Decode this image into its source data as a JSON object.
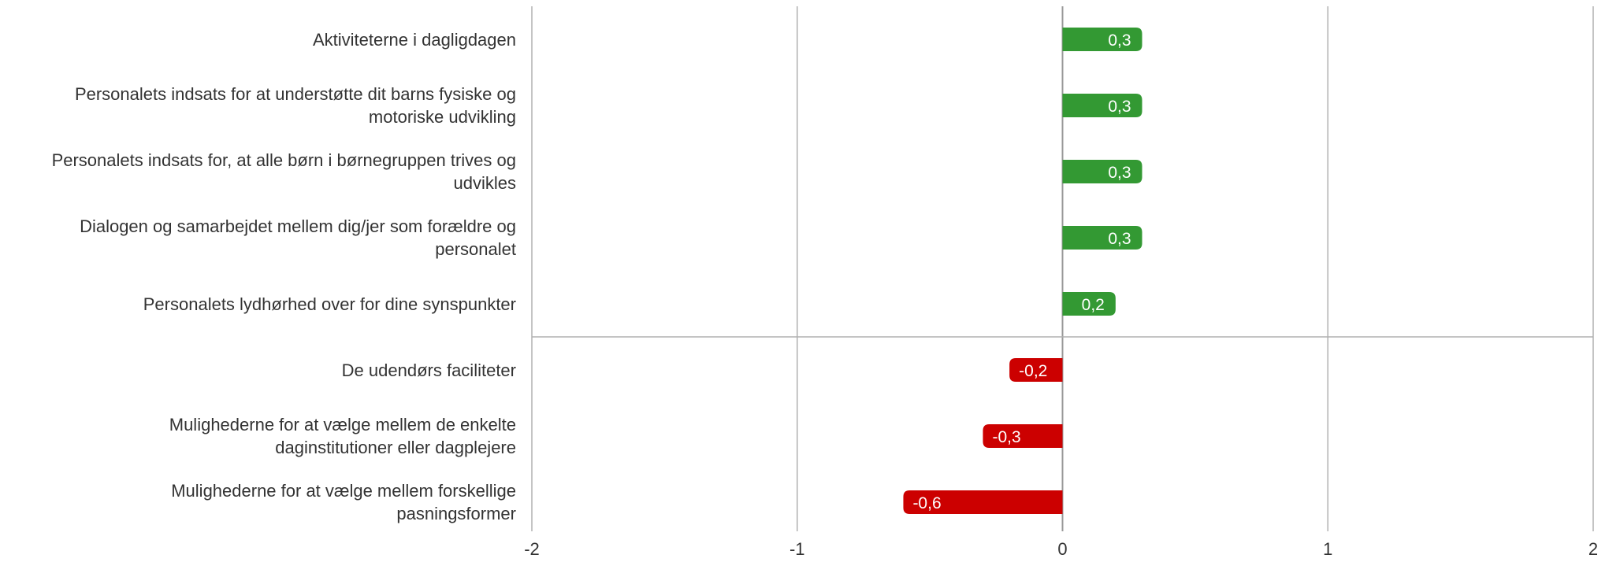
{
  "chart_data": {
    "type": "bar",
    "orientation": "horizontal",
    "categories": [
      "Aktiviteterne i dagligdagen",
      "Personalets indsats for at understøtte dit barns fysiske og motoriske udvikling",
      "Personalets indsats for, at alle børn i børnegruppen trives og udvikles",
      "Dialogen og samarbejdet mellem dig/jer som forældre og personalet",
      "Personalets lydhørhed over for dine synspunkter",
      "De udendørs faciliteter",
      "Mulighederne for at vælge mellem de enkelte daginstitutioner eller dagplejere",
      "Mulighederne for at vælge mellem forskellige pasningsformer"
    ],
    "category_lines": [
      [
        "Aktiviteterne i dagligdagen"
      ],
      [
        "Personalets indsats for at understøtte dit barns fysiske og",
        "motoriske udvikling"
      ],
      [
        "Personalets indsats for, at alle børn i børnegruppen trives og",
        "udvikles"
      ],
      [
        "Dialogen og samarbejdet mellem dig/jer som forældre og",
        "personalet"
      ],
      [
        "Personalets lydhørhed over for dine synspunkter"
      ],
      [
        "De udendørs faciliteter"
      ],
      [
        "Mulighederne for at vælge mellem de enkelte",
        "daginstitutioner eller dagplejere"
      ],
      [
        "Mulighederne for at vælge mellem forskellige",
        "pasningsformer"
      ]
    ],
    "values": [
      0.3,
      0.3,
      0.3,
      0.3,
      0.2,
      -0.2,
      -0.3,
      -0.6
    ],
    "value_labels": [
      "0,3",
      "0,3",
      "0,3",
      "0,3",
      "0,2",
      "-0,2",
      "-0,3",
      "-0,6"
    ],
    "xlim": [
      -2,
      2
    ],
    "x_ticks": [
      -2,
      -1,
      0,
      1,
      2
    ],
    "x_tick_labels": [
      "-2",
      "-1",
      "0",
      "1",
      "2"
    ],
    "grid": true,
    "separator_after_index": 4,
    "colors": {
      "positive": "#339933",
      "negative": "#cc0000",
      "grid": "#b0b0b0",
      "axis": "#999999",
      "text": "#333333"
    }
  }
}
